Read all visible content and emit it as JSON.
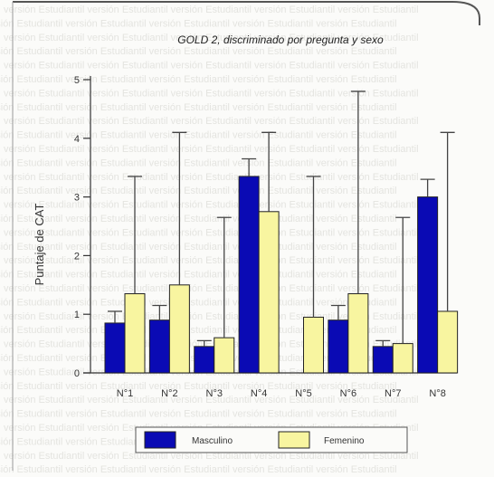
{
  "chart_data": {
    "type": "bar",
    "title": "GOLD 2, discriminado por pregunta y sexo",
    "xlabel": "",
    "ylabel": "Puntaje de CAT",
    "categories": [
      "N°1",
      "N°2",
      "N°3",
      "N°4",
      "N°5",
      "N°6",
      "N°7",
      "N°8"
    ],
    "yticks": [
      "0",
      "1",
      "2",
      "3",
      "4",
      "5"
    ],
    "ylim": [
      0,
      5
    ],
    "error_bars": "upper-only",
    "legend_position": "bottom",
    "series": [
      {
        "name": "Masculino",
        "color": "#0a0ab4",
        "values": [
          0.85,
          0.9,
          0.45,
          3.35,
          0,
          0.9,
          0.45,
          3.0
        ],
        "error_upper": [
          1.05,
          1.15,
          0.55,
          3.65,
          0,
          1.15,
          0.55,
          3.3
        ]
      },
      {
        "name": "Femenino",
        "color": "#f8f5a0",
        "values": [
          1.35,
          1.5,
          0.6,
          2.75,
          0.95,
          1.35,
          0.5,
          1.05
        ],
        "error_upper": [
          3.35,
          4.1,
          2.65,
          4.1,
          3.35,
          4.8,
          2.65,
          4.1
        ]
      }
    ]
  }
}
